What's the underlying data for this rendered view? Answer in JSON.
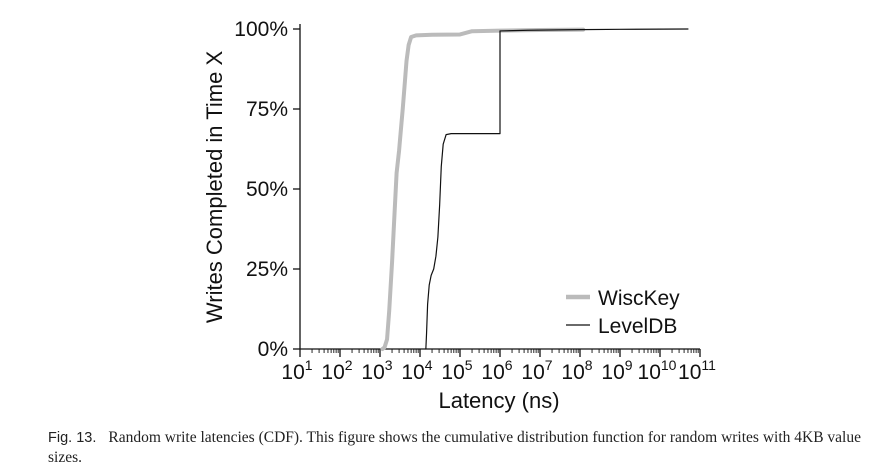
{
  "chart_data": {
    "type": "line",
    "xlabel": "Latency (ns)",
    "ylabel": "Writes Completed in Time X",
    "x_scale": "log10",
    "xlim": [
      10,
      100000000000
    ],
    "ylim": [
      0,
      100
    ],
    "x_tick_values": [
      10,
      100,
      1000,
      10000,
      100000,
      1000000,
      10000000,
      100000000,
      1000000000,
      10000000000,
      100000000000
    ],
    "x_tick_labels": [
      {
        "base": "10",
        "exp": "1"
      },
      {
        "base": "10",
        "exp": "2"
      },
      {
        "base": "10",
        "exp": "3"
      },
      {
        "base": "10",
        "exp": "4"
      },
      {
        "base": "10",
        "exp": "5"
      },
      {
        "base": "10",
        "exp": "6"
      },
      {
        "base": "10",
        "exp": "7"
      },
      {
        "base": "10",
        "exp": "8"
      },
      {
        "base": "10",
        "exp": "9"
      },
      {
        "base": "10",
        "exp": "10"
      },
      {
        "base": "10",
        "exp": "11"
      }
    ],
    "y_tick_values": [
      0,
      25,
      50,
      75,
      100
    ],
    "y_tick_labels": [
      "0%",
      "25%",
      "50%",
      "75%",
      "100%"
    ],
    "grid": false,
    "legend_position": "bottom-right",
    "series": [
      {
        "name": "WiscKey",
        "color": "#bbbbbb",
        "style": "thick",
        "points": [
          [
            1150,
            0
          ],
          [
            1300,
            0.5
          ],
          [
            1500,
            3
          ],
          [
            1700,
            12
          ],
          [
            2000,
            27
          ],
          [
            2300,
            42
          ],
          [
            2600,
            55
          ],
          [
            3000,
            62
          ],
          [
            3300,
            68
          ],
          [
            3700,
            75
          ],
          [
            4100,
            82
          ],
          [
            4600,
            90
          ],
          [
            5200,
            95
          ],
          [
            6000,
            97.5
          ],
          [
            8000,
            98
          ],
          [
            20000,
            98.2
          ],
          [
            100000,
            98.3
          ],
          [
            200000,
            99.3
          ],
          [
            1000000,
            99.5
          ],
          [
            10000000,
            99.7
          ],
          [
            120000000,
            99.8
          ]
        ]
      },
      {
        "name": "LevelDB",
        "color": "#111111",
        "style": "thin",
        "points": [
          [
            14000,
            0
          ],
          [
            14600,
            5
          ],
          [
            15500,
            14
          ],
          [
            17000,
            20
          ],
          [
            19000,
            23
          ],
          [
            22000,
            25
          ],
          [
            25000,
            29
          ],
          [
            28000,
            35
          ],
          [
            31000,
            45
          ],
          [
            34000,
            57
          ],
          [
            38000,
            64
          ],
          [
            45000,
            67
          ],
          [
            60000,
            67.3
          ],
          [
            1000000,
            67.3
          ],
          [
            1000000,
            99.4
          ],
          [
            5000000,
            99.6
          ],
          [
            100000000,
            99.8
          ],
          [
            1000000000,
            99.9
          ],
          [
            50000000000,
            100
          ]
        ]
      }
    ]
  },
  "caption": {
    "label": "Fig. 13.",
    "text": "Random write latencies (CDF). This figure shows the cumulative distribution function for random writes with 4KB value sizes."
  }
}
